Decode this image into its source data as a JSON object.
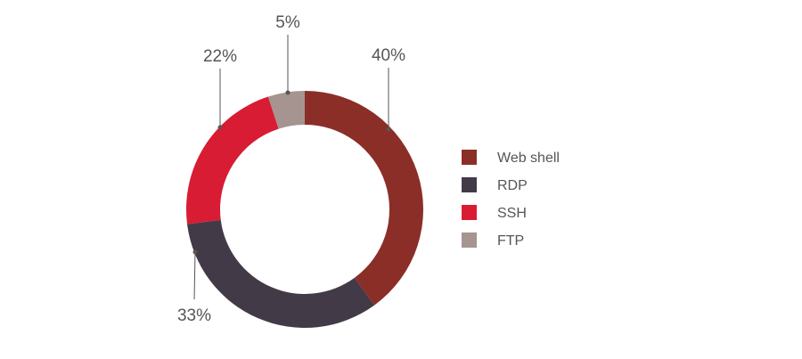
{
  "chart_data": {
    "type": "pie",
    "variant": "donut",
    "title": "",
    "categories": [
      "Web shell",
      "RDP",
      "SSH",
      "FTP"
    ],
    "values": [
      40,
      33,
      22,
      5
    ],
    "value_labels": [
      "40%",
      "33%",
      "22%",
      "5%"
    ],
    "colors": [
      "#8b2e28",
      "#433a48",
      "#d81c33",
      "#a5948f"
    ],
    "legend": {
      "placement": "right",
      "entries": [
        "Web shell",
        "RDP",
        "SSH",
        "FTP"
      ]
    }
  }
}
